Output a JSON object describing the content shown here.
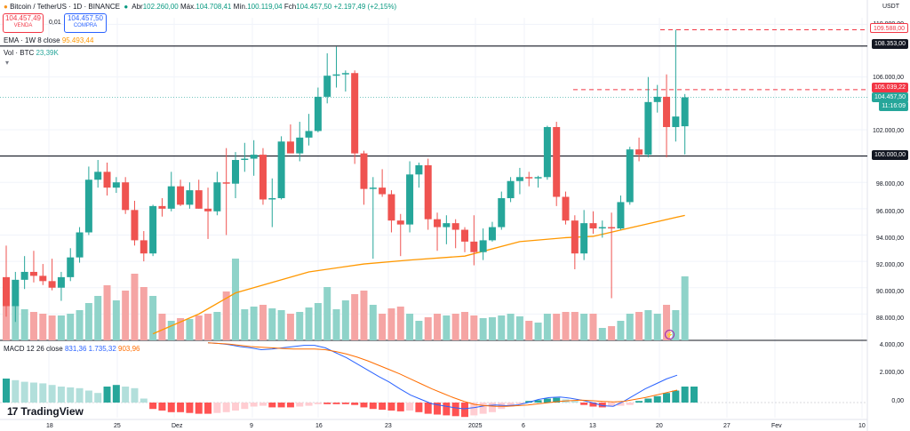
{
  "header": {
    "symbol": "Bitcoin / TetherUS · 1D · BINANCE",
    "open_label": "Abr",
    "open": "102.260,00",
    "high_label": "Máx.",
    "high": "104.708,41",
    "low_label": "Mín.",
    "low": "100.119,04",
    "close_label": "Fch",
    "close": "104.457,50",
    "change": "+2.197,49 (+2,15%)"
  },
  "trade": {
    "sell_price": "104.457,49",
    "sell_label": "VENDA",
    "spread": "0,01",
    "buy_price": "104.457,50",
    "buy_label": "COMPRA"
  },
  "indicators": {
    "ema_label": "EMA · 1W 8 close",
    "ema_value": "95.493,44",
    "vol_label": "Vol · BTC",
    "vol_value": "23,39K",
    "macd_label": "MACD 12 26 close",
    "macd_v1": "831,36",
    "macd_v2": "1.735,32",
    "macd_v3": "903,96"
  },
  "price_axis": {
    "currency": "USDT",
    "ticks": [
      "110.000,00",
      "106.000,00",
      "102.000,00",
      "98.000,00",
      "96.000,00",
      "94.000,00",
      "92.000,00",
      "90.000,00",
      "88.000,00"
    ],
    "tags": {
      "level_high": "109.588,00",
      "level_108": "108.353,00",
      "level_105": "105.039,22",
      "last_price": "104.457,50",
      "countdown": "11:16:09",
      "level_100": "100.000,00"
    }
  },
  "macd_axis": {
    "ticks": [
      "4.000,00",
      "2.000,00",
      "0,00"
    ]
  },
  "time_axis": {
    "labels": [
      "18",
      "25",
      "Dez",
      "9",
      "16",
      "23",
      "2025",
      "6",
      "13",
      "20",
      "27",
      "Fev",
      "10"
    ]
  },
  "brand": {
    "name": "TradingView"
  },
  "chart_data": {
    "type": "candlestick",
    "interval": "1D",
    "ylim": [
      86000,
      110500
    ],
    "horizontal_levels": [
      108353,
      100000,
      109588,
      105039.22
    ],
    "candles": [
      {
        "o": 90800,
        "h": 93200,
        "l": 87800,
        "c": 88600
      },
      {
        "o": 88600,
        "h": 91200,
        "l": 87400,
        "c": 90600
      },
      {
        "o": 90600,
        "h": 92400,
        "l": 89900,
        "c": 91200
      },
      {
        "o": 91200,
        "h": 92800,
        "l": 90400,
        "c": 90900
      },
      {
        "o": 90900,
        "h": 91800,
        "l": 90200,
        "c": 90500
      },
      {
        "o": 90500,
        "h": 92200,
        "l": 89800,
        "c": 90000
      },
      {
        "o": 90000,
        "h": 91200,
        "l": 89000,
        "c": 90800
      },
      {
        "o": 90800,
        "h": 93000,
        "l": 90500,
        "c": 92300
      },
      {
        "o": 92300,
        "h": 94600,
        "l": 91900,
        "c": 94200
      },
      {
        "o": 94200,
        "h": 99200,
        "l": 94000,
        "c": 98200
      },
      {
        "o": 98200,
        "h": 99700,
        "l": 97600,
        "c": 98800
      },
      {
        "o": 98800,
        "h": 99500,
        "l": 97000,
        "c": 97600
      },
      {
        "o": 97600,
        "h": 98400,
        "l": 97200,
        "c": 98000
      },
      {
        "o": 98000,
        "h": 98400,
        "l": 95600,
        "c": 95900
      },
      {
        "o": 95900,
        "h": 96600,
        "l": 93200,
        "c": 93600
      },
      {
        "o": 93600,
        "h": 94300,
        "l": 92000,
        "c": 92600
      },
      {
        "o": 92600,
        "h": 96300,
        "l": 92400,
        "c": 96200
      },
      {
        "o": 96200,
        "h": 96800,
        "l": 95400,
        "c": 96000
      },
      {
        "o": 96000,
        "h": 98800,
        "l": 95800,
        "c": 97700
      },
      {
        "o": 97700,
        "h": 98200,
        "l": 96200,
        "c": 96300
      },
      {
        "o": 96300,
        "h": 98000,
        "l": 96000,
        "c": 97400
      },
      {
        "o": 97400,
        "h": 98200,
        "l": 96000,
        "c": 96000
      },
      {
        "o": 96000,
        "h": 97600,
        "l": 93700,
        "c": 95800
      },
      {
        "o": 95800,
        "h": 98800,
        "l": 95500,
        "c": 98000
      },
      {
        "o": 98000,
        "h": 100600,
        "l": 94000,
        "c": 97900
      },
      {
        "o": 97900,
        "h": 100300,
        "l": 96800,
        "c": 99700
      },
      {
        "o": 99700,
        "h": 101000,
        "l": 98800,
        "c": 99800
      },
      {
        "o": 99800,
        "h": 101200,
        "l": 98500,
        "c": 100100
      },
      {
        "o": 100100,
        "h": 100600,
        "l": 96300,
        "c": 96700
      },
      {
        "o": 96700,
        "h": 98300,
        "l": 94600,
        "c": 96800
      },
      {
        "o": 96800,
        "h": 101500,
        "l": 96700,
        "c": 101100
      },
      {
        "o": 101100,
        "h": 102400,
        "l": 100300,
        "c": 100200
      },
      {
        "o": 100200,
        "h": 102600,
        "l": 99600,
        "c": 101400
      },
      {
        "o": 101400,
        "h": 103200,
        "l": 100800,
        "c": 101900
      },
      {
        "o": 101900,
        "h": 105200,
        "l": 101800,
        "c": 104500
      },
      {
        "o": 104500,
        "h": 107800,
        "l": 104000,
        "c": 106100
      },
      {
        "o": 106100,
        "h": 108300,
        "l": 105200,
        "c": 106200
      },
      {
        "o": 106200,
        "h": 106500,
        "l": 104900,
        "c": 106300
      },
      {
        "o": 106300,
        "h": 106500,
        "l": 99400,
        "c": 100200
      },
      {
        "o": 100200,
        "h": 100400,
        "l": 96300,
        "c": 97500
      },
      {
        "o": 97500,
        "h": 98400,
        "l": 92200,
        "c": 97600
      },
      {
        "o": 97600,
        "h": 99000,
        "l": 96900,
        "c": 97100
      },
      {
        "o": 97100,
        "h": 97400,
        "l": 94200,
        "c": 95100
      },
      {
        "o": 95100,
        "h": 95600,
        "l": 92400,
        "c": 94800
      },
      {
        "o": 94800,
        "h": 99600,
        "l": 94200,
        "c": 98600
      },
      {
        "o": 98600,
        "h": 99500,
        "l": 97600,
        "c": 99300
      },
      {
        "o": 99300,
        "h": 99800,
        "l": 94400,
        "c": 95200
      },
      {
        "o": 95200,
        "h": 95700,
        "l": 92800,
        "c": 94600
      },
      {
        "o": 94600,
        "h": 95500,
        "l": 93300,
        "c": 94900
      },
      {
        "o": 94900,
        "h": 95200,
        "l": 93000,
        "c": 94400
      },
      {
        "o": 94400,
        "h": 94600,
        "l": 92700,
        "c": 93500
      },
      {
        "o": 93500,
        "h": 95500,
        "l": 91700,
        "c": 92700
      },
      {
        "o": 92700,
        "h": 94500,
        "l": 92100,
        "c": 93600
      },
      {
        "o": 93600,
        "h": 95000,
        "l": 93500,
        "c": 94600
      },
      {
        "o": 94600,
        "h": 97300,
        "l": 94400,
        "c": 96800
      },
      {
        "o": 96800,
        "h": 98400,
        "l": 96500,
        "c": 98100
      },
      {
        "o": 98100,
        "h": 99100,
        "l": 97100,
        "c": 98400
      },
      {
        "o": 98400,
        "h": 98800,
        "l": 97700,
        "c": 98300
      },
      {
        "o": 98300,
        "h": 98500,
        "l": 97600,
        "c": 98400
      },
      {
        "o": 98400,
        "h": 102300,
        "l": 98200,
        "c": 102200
      },
      {
        "o": 102200,
        "h": 102600,
        "l": 96200,
        "c": 96900
      },
      {
        "o": 96900,
        "h": 97300,
        "l": 94800,
        "c": 95100
      },
      {
        "o": 95100,
        "h": 95500,
        "l": 91400,
        "c": 92600
      },
      {
        "o": 92600,
        "h": 95900,
        "l": 92100,
        "c": 94900
      },
      {
        "o": 94900,
        "h": 95800,
        "l": 94100,
        "c": 94500
      },
      {
        "o": 94500,
        "h": 95100,
        "l": 93800,
        "c": 94600
      },
      {
        "o": 94600,
        "h": 95700,
        "l": 89200,
        "c": 94500
      },
      {
        "o": 94500,
        "h": 97000,
        "l": 94400,
        "c": 96500
      },
      {
        "o": 96500,
        "h": 100700,
        "l": 96300,
        "c": 100500
      },
      {
        "o": 100500,
        "h": 101400,
        "l": 99600,
        "c": 100100
      },
      {
        "o": 100100,
        "h": 106000,
        "l": 99900,
        "c": 104100
      },
      {
        "o": 104100,
        "h": 105400,
        "l": 103300,
        "c": 104500
      },
      {
        "o": 104500,
        "h": 106200,
        "l": 99900,
        "c": 102200
      },
      {
        "o": 102200,
        "h": 109588,
        "l": 101100,
        "c": 103000
      },
      {
        "o": 102260,
        "h": 104708.41,
        "l": 100119.04,
        "c": 104457.5
      }
    ],
    "ema_1w": [
      {
        "i": 16,
        "v": 86500
      },
      {
        "i": 21,
        "v": 88000
      },
      {
        "i": 25,
        "v": 89600
      },
      {
        "i": 33,
        "v": 91200
      },
      {
        "i": 39,
        "v": 91800
      },
      {
        "i": 44,
        "v": 92100
      },
      {
        "i": 50,
        "v": 92400
      },
      {
        "i": 56,
        "v": 93500
      },
      {
        "i": 61,
        "v": 93800
      },
      {
        "i": 64,
        "v": 93900
      },
      {
        "i": 69,
        "v": 94700
      },
      {
        "i": 74,
        "v": 95493.44
      }
    ],
    "volume": [
      0.45,
      0.4,
      0.35,
      0.32,
      0.3,
      0.28,
      0.28,
      0.3,
      0.34,
      0.42,
      0.5,
      0.62,
      0.45,
      0.56,
      0.75,
      0.6,
      0.5,
      0.3,
      0.22,
      0.25,
      0.24,
      0.28,
      0.3,
      0.32,
      0.55,
      0.92,
      0.35,
      0.38,
      0.4,
      0.36,
      0.34,
      0.3,
      0.32,
      0.37,
      0.42,
      0.6,
      0.35,
      0.45,
      0.52,
      0.56,
      0.4,
      0.3,
      0.36,
      0.38,
      0.3,
      0.22,
      0.26,
      0.3,
      0.28,
      0.3,
      0.32,
      0.28,
      0.25,
      0.26,
      0.28,
      0.3,
      0.27,
      0.22,
      0.2,
      0.3,
      0.3,
      0.32,
      0.32,
      0.3,
      0.3,
      0.14,
      0.16,
      0.22,
      0.3,
      0.32,
      0.34,
      0.3,
      0.4,
      0.34,
      0.72,
      0.25
    ],
    "macd_hist": [
      0.3,
      0.28,
      0.26,
      0.25,
      0.24,
      0.22,
      0.2,
      0.19,
      0.18,
      0.15,
      0.12,
      0.2,
      0.22,
      0.2,
      0.18,
      0.05,
      -0.08,
      -0.1,
      -0.12,
      -0.12,
      -0.13,
      -0.14,
      -0.14,
      -0.13,
      -0.12,
      -0.1,
      -0.08,
      -0.05,
      -0.04,
      -0.06,
      -0.06,
      -0.06,
      -0.05,
      -0.04,
      -0.02,
      -0.02,
      -0.02,
      -0.02,
      -0.03,
      -0.06,
      -0.08,
      -0.09,
      -0.1,
      -0.11,
      -0.1,
      -0.12,
      -0.14,
      -0.15,
      -0.16,
      -0.17,
      -0.18,
      -0.16,
      -0.14,
      -0.12,
      -0.08,
      -0.05,
      -0.02,
      0.02,
      0.03,
      0.05,
      0.06,
      0.04,
      0.02,
      -0.03,
      -0.05,
      -0.06,
      -0.05,
      -0.04,
      -0.03,
      0.02,
      0.05,
      0.08,
      0.12,
      0.15,
      0.2,
      0.2
    ],
    "macd_line": [
      0.96,
      0.95,
      0.93,
      0.9,
      0.88,
      0.85,
      0.86,
      0.88,
      0.9,
      0.92,
      0.92,
      0.88,
      0.8,
      0.72,
      0.62,
      0.52,
      0.42,
      0.33,
      0.22,
      0.12,
      0.05,
      -0.02,
      -0.05,
      -0.08,
      -0.1,
      -0.08,
      -0.05,
      -0.04,
      -0.05,
      -0.04,
      0.0,
      0.05,
      0.08,
      0.09,
      0.07,
      0.04,
      0.0,
      -0.05,
      -0.06,
      0.02,
      0.12,
      0.22,
      0.3,
      0.38,
      0.44
    ],
    "signal_line": [
      0.96,
      0.95,
      0.94,
      0.92,
      0.9,
      0.89,
      0.88,
      0.87,
      0.86,
      0.86,
      0.86,
      0.85,
      0.82,
      0.78,
      0.73,
      0.67,
      0.6,
      0.53,
      0.46,
      0.38,
      0.3,
      0.22,
      0.15,
      0.08,
      0.02,
      -0.03,
      -0.05,
      -0.06,
      -0.06,
      -0.05,
      -0.04,
      -0.02,
      0.0,
      0.02,
      0.03,
      0.04,
      0.03,
      0.02,
      0.01,
      0.02,
      0.05,
      0.08,
      0.12,
      0.16,
      0.2
    ],
    "colors": {
      "up": "#26a69a",
      "down": "#ef5350",
      "ema": "#ff9800",
      "macd": "#2962ff",
      "signal": "#ff6d00",
      "vol_up": "#8fd3c9",
      "vol_down": "#f5a5a4"
    }
  }
}
